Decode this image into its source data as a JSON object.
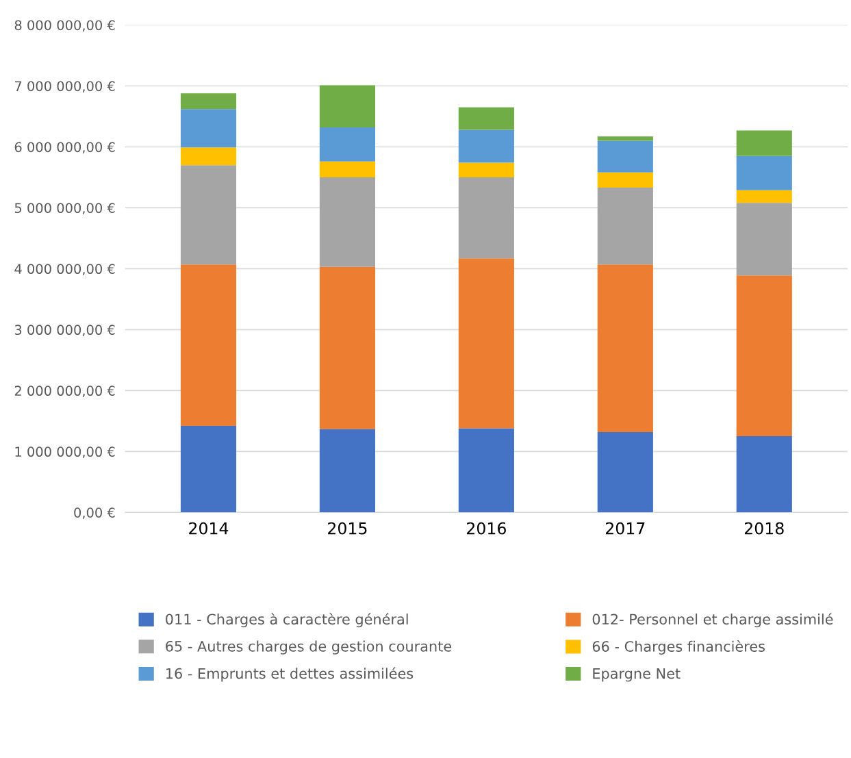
{
  "chart_data": {
    "type": "bar",
    "stacked": true,
    "categories": [
      "2014",
      "2015",
      "2016",
      "2017",
      "2018"
    ],
    "series": [
      {
        "name": "011 - Charges à caractère général",
        "color": "#4472c4",
        "values": [
          1420000,
          1370000,
          1380000,
          1320000,
          1250000
        ]
      },
      {
        "name": "012- Personnel et charge assimilé",
        "color": "#ed7d31",
        "values": [
          2650000,
          2660000,
          2790000,
          2750000,
          2640000
        ]
      },
      {
        "name": "65 - Autres charges de gestion courante",
        "color": "#a5a5a5",
        "values": [
          1630000,
          1470000,
          1330000,
          1260000,
          1190000
        ]
      },
      {
        "name": "66 - Charges financières",
        "color": "#ffc000",
        "values": [
          290000,
          260000,
          240000,
          250000,
          210000
        ]
      },
      {
        "name": "16 - Emprunts et dettes assimilées",
        "color": "#5b9bd5",
        "values": [
          630000,
          560000,
          540000,
          520000,
          560000
        ]
      },
      {
        "name": "Epargne Net",
        "color": "#70ad47",
        "values": [
          260000,
          690000,
          370000,
          70000,
          420000
        ]
      }
    ],
    "ylim": [
      0,
      8000000
    ],
    "yticks": [
      {
        "value": 0,
        "label": "0,00 €"
      },
      {
        "value": 1000000,
        "label": "1 000 000,00 €"
      },
      {
        "value": 2000000,
        "label": "2 000 000,00 €"
      },
      {
        "value": 3000000,
        "label": "3 000 000,00 €"
      },
      {
        "value": 4000000,
        "label": "4 000 000,00 €"
      },
      {
        "value": 5000000,
        "label": "5 000 000,00 €"
      },
      {
        "value": 6000000,
        "label": "6 000 000,00 €"
      },
      {
        "value": 7000000,
        "label": "7 000 000,00 €"
      },
      {
        "value": 8000000,
        "label": "8 000 000,00 €"
      }
    ],
    "grid": "y",
    "legend": "bottom"
  }
}
